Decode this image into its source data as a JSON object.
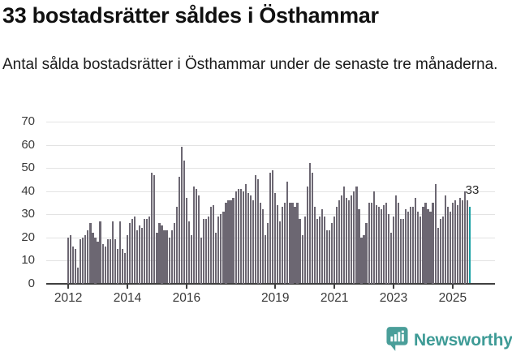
{
  "header": {
    "title": "33 bostadsrätter såldes i Östhammar",
    "subtitle": "Antal sålda bostadsrätter i Östhammar under de senaste tre månaderna."
  },
  "chart_data": {
    "type": "bar",
    "title": "33 bostadsrätter såldes i Östhammar",
    "subtitle": "Antal sålda bostadsrätter i Östhammar under de senaste tre månaderna.",
    "ylabel": "",
    "xlabel": "",
    "ylim": [
      0,
      70
    ],
    "yticks": [
      0,
      10,
      20,
      30,
      40,
      50,
      60,
      70
    ],
    "xticks": [
      2012,
      2014,
      2016,
      2019,
      2021,
      2023,
      2025
    ],
    "grid": true,
    "start_year": 2012,
    "start_month": 1,
    "end_year": 2025,
    "end_month": 8,
    "values": [
      20,
      21,
      16,
      15,
      7,
      19,
      20,
      21,
      23,
      26,
      22,
      20,
      18,
      27,
      17,
      16,
      19,
      19,
      27,
      19,
      15,
      27,
      15,
      13,
      21,
      26,
      28,
      29,
      23,
      25,
      24,
      28,
      28,
      29,
      48,
      47,
      22,
      26,
      25,
      23,
      23,
      20,
      23,
      26,
      33,
      46,
      59,
      53,
      37,
      27,
      21,
      42,
      41,
      38,
      20,
      28,
      28,
      29,
      33,
      34,
      22,
      29,
      30,
      31,
      35,
      36,
      36,
      37,
      40,
      41,
      41,
      40,
      43,
      39,
      38,
      36,
      47,
      45,
      35,
      32,
      21,
      26,
      48,
      49,
      39,
      34,
      27,
      33,
      35,
      44,
      35,
      35,
      33,
      35,
      28,
      21,
      29,
      42,
      52,
      48,
      33,
      28,
      29,
      32,
      29,
      23,
      23,
      26,
      29,
      33,
      36,
      38,
      42,
      37,
      36,
      38,
      40,
      42,
      32,
      20,
      21,
      26,
      35,
      35,
      40,
      34,
      33,
      32,
      34,
      35,
      30,
      22,
      29,
      38,
      35,
      28,
      28,
      32,
      31,
      33,
      33,
      37,
      31,
      29,
      33,
      35,
      32,
      31,
      35,
      43,
      24,
      28,
      29,
      38,
      33,
      31,
      35,
      36,
      34,
      37,
      36,
      40,
      36,
      33
    ],
    "highlight_last": {
      "value": 33,
      "label": "33"
    },
    "colors": {
      "bar": "#6c6772",
      "highlight": "#18a0a4",
      "grid": "#e3e3e3",
      "axis": "#3f3f3f",
      "tick_label": "#3a3a3a"
    }
  },
  "footer": {
    "brand": "Newsworthy",
    "brand_color": "#3e9b96"
  }
}
